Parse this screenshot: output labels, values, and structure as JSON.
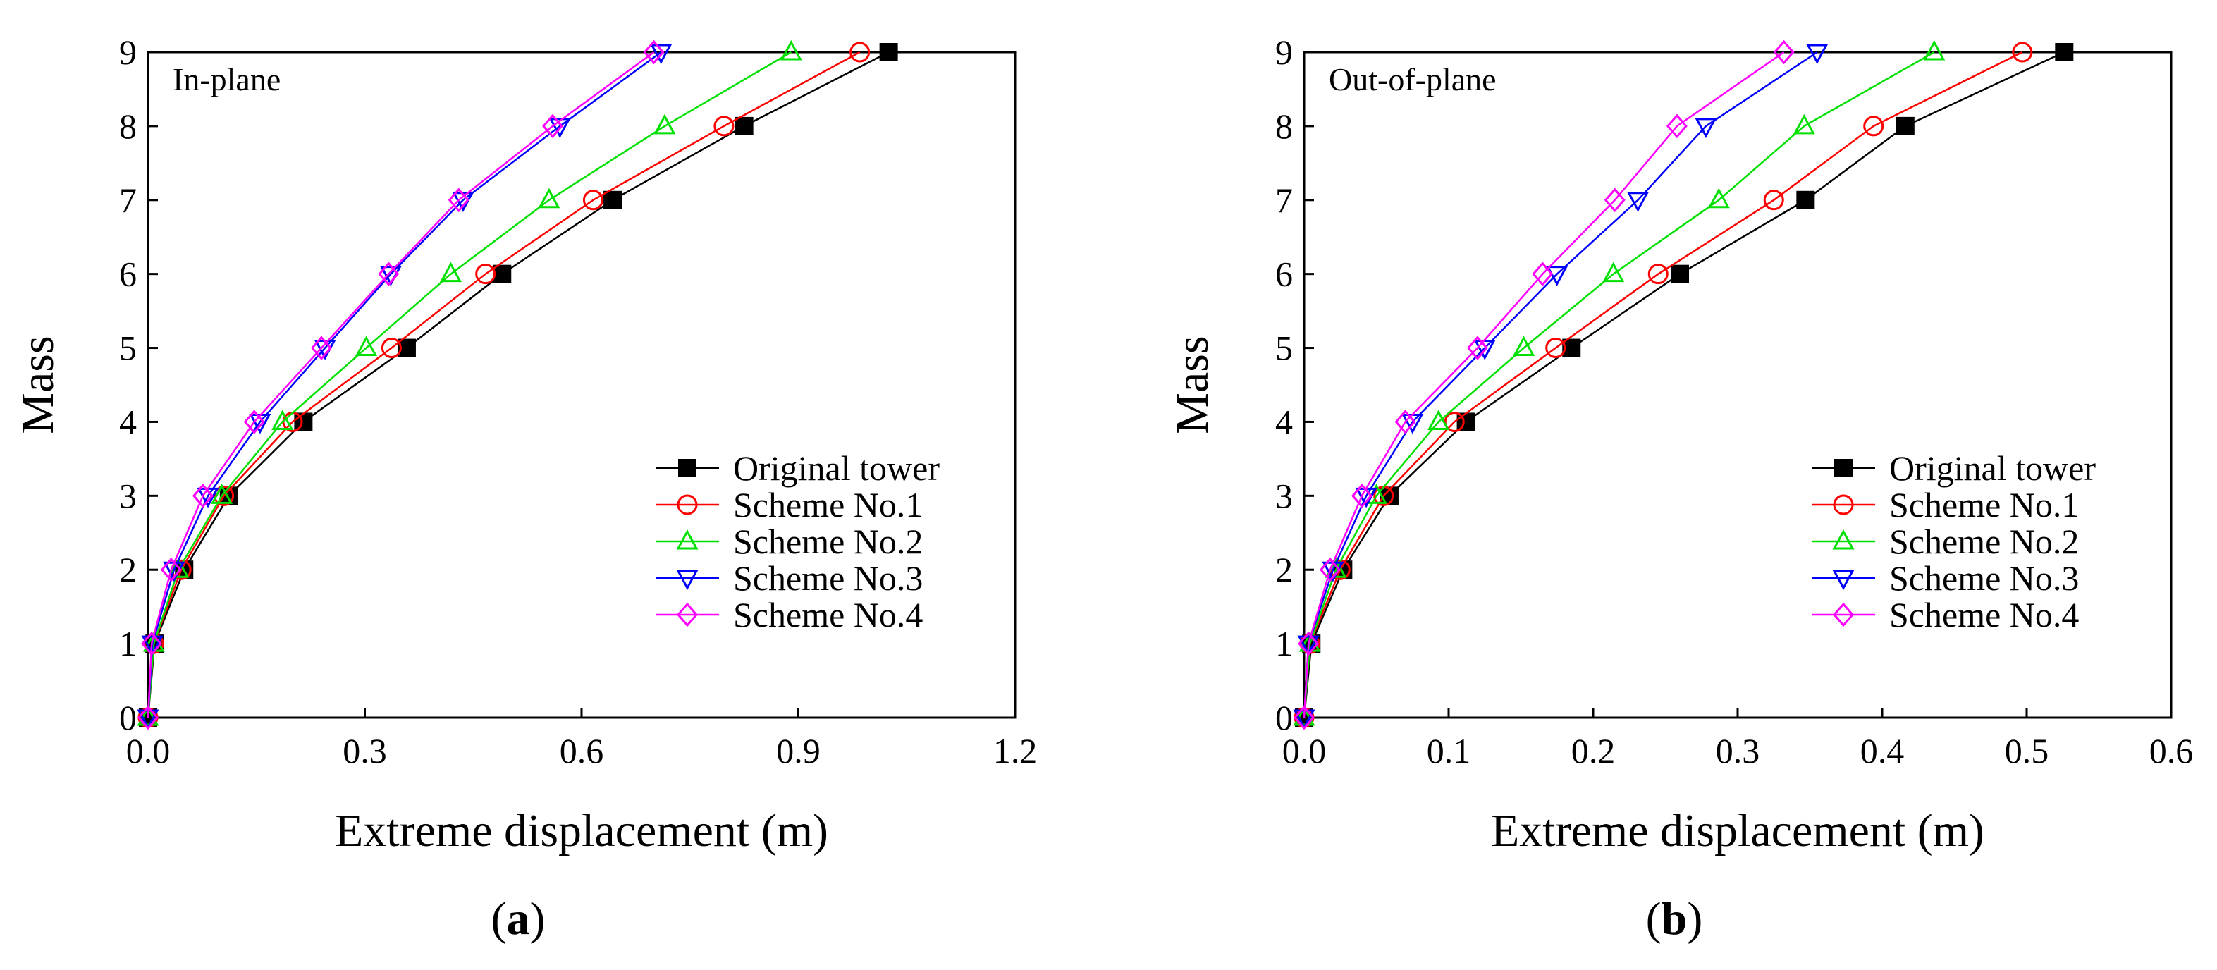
{
  "chart_data": [
    {
      "type": "line",
      "panel_letter": "a",
      "annotation": "In-plane",
      "xlabel": "Extreme displacement (m)",
      "ylabel": "Mass",
      "xlim": [
        0,
        1.2
      ],
      "ylim": [
        0,
        9
      ],
      "xticks": [
        "0.0",
        "0.3",
        "0.6",
        "0.9",
        "1.2"
      ],
      "yticks": [
        "0",
        "1",
        "2",
        "3",
        "4",
        "5",
        "6",
        "7",
        "8",
        "9"
      ],
      "legend_position": "bottom-right",
      "y": [
        0,
        1,
        2,
        3,
        4,
        5,
        6,
        7,
        8,
        9
      ],
      "series": [
        {
          "name": "Original tower",
          "color": "#000000",
          "marker": "filled-square",
          "x": [
            0,
            0.009,
            0.05,
            0.112,
            0.215,
            0.358,
            0.49,
            0.643,
            0.825,
            1.025
          ]
        },
        {
          "name": "Scheme No.1",
          "color": "#ff0000",
          "marker": "circle",
          "x": [
            0,
            0.008,
            0.046,
            0.105,
            0.2,
            0.337,
            0.467,
            0.616,
            0.797,
            0.985
          ]
        },
        {
          "name": "Scheme No.2",
          "color": "#00e000",
          "marker": "triangle-up",
          "x": [
            0,
            0.008,
            0.042,
            0.102,
            0.186,
            0.302,
            0.419,
            0.555,
            0.715,
            0.89
          ]
        },
        {
          "name": "Scheme No.3",
          "color": "#0000ff",
          "marker": "triangle-down",
          "x": [
            0,
            0.006,
            0.036,
            0.083,
            0.155,
            0.245,
            0.336,
            0.436,
            0.57,
            0.71
          ]
        },
        {
          "name": "Scheme No.4",
          "color": "#ff00ff",
          "marker": "diamond",
          "x": [
            0,
            0.005,
            0.032,
            0.076,
            0.147,
            0.24,
            0.333,
            0.43,
            0.56,
            0.7
          ]
        }
      ]
    },
    {
      "type": "line",
      "panel_letter": "b",
      "annotation": "Out-of-plane",
      "xlabel": "Extreme displacement (m)",
      "ylabel": "Mass",
      "xlim": [
        0,
        0.6
      ],
      "ylim": [
        0,
        9
      ],
      "xticks": [
        "0.0",
        "0.1",
        "0.2",
        "0.3",
        "0.4",
        "0.5",
        "0.6"
      ],
      "yticks": [
        "0",
        "1",
        "2",
        "3",
        "4",
        "5",
        "6",
        "7",
        "8",
        "9"
      ],
      "legend_position": "bottom-right",
      "y": [
        0,
        1,
        2,
        3,
        4,
        5,
        6,
        7,
        8,
        9
      ],
      "series": [
        {
          "name": "Original tower",
          "color": "#000000",
          "marker": "filled-square",
          "x": [
            0,
            0.005,
            0.027,
            0.059,
            0.112,
            0.185,
            0.26,
            0.347,
            0.416,
            0.526
          ]
        },
        {
          "name": "Scheme No.1",
          "color": "#ff0000",
          "marker": "circle",
          "x": [
            0,
            0.004,
            0.025,
            0.055,
            0.104,
            0.174,
            0.245,
            0.325,
            0.394,
            0.497
          ]
        },
        {
          "name": "Scheme No.2",
          "color": "#00e000",
          "marker": "triangle-up",
          "x": [
            0,
            0.004,
            0.022,
            0.05,
            0.093,
            0.152,
            0.214,
            0.287,
            0.346,
            0.436
          ]
        },
        {
          "name": "Scheme No.3",
          "color": "#0000ff",
          "marker": "triangle-down",
          "x": [
            0,
            0.003,
            0.02,
            0.043,
            0.075,
            0.125,
            0.175,
            0.231,
            0.278,
            0.355
          ]
        },
        {
          "name": "Scheme No.4",
          "color": "#ff00ff",
          "marker": "diamond",
          "x": [
            0,
            0.003,
            0.018,
            0.04,
            0.07,
            0.12,
            0.165,
            0.215,
            0.258,
            0.332
          ]
        }
      ]
    }
  ]
}
